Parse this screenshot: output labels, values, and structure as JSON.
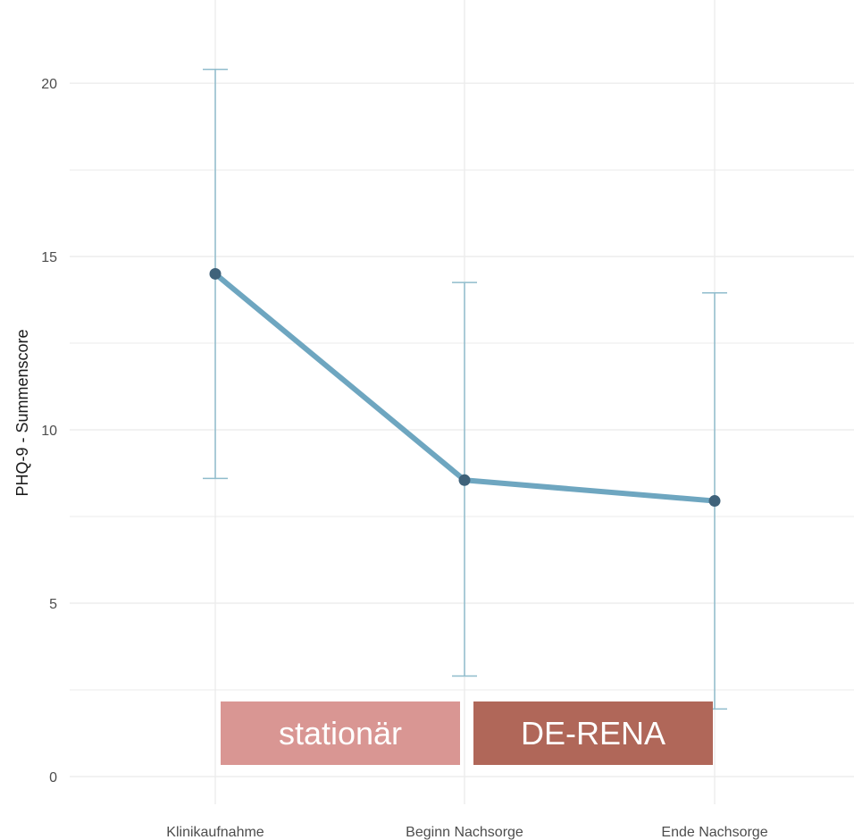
{
  "chart_data": {
    "type": "line",
    "categories": [
      "Klinikaufnahme",
      "Beginn Nachsorge",
      "Ende Nachsorge"
    ],
    "values": [
      14.5,
      8.55,
      7.95
    ],
    "error_low": [
      8.6,
      2.9,
      1.95
    ],
    "error_high": [
      20.4,
      14.25,
      13.95
    ],
    "ylabel": "PHQ-9 - Summenscore",
    "xlabel": "",
    "ylim": [
      -0.8,
      22.4
    ],
    "yticks": [
      0,
      5,
      10,
      15,
      20
    ],
    "grid": true,
    "colors": {
      "line": "#6ea6c0",
      "point": "#3f627a",
      "errorbar": "#8fbccc",
      "grid": "#ebebeb"
    }
  },
  "phases": [
    {
      "label": "stationär",
      "color": "#d99693"
    },
    {
      "label": "DE-RENA",
      "color": "#b06759"
    }
  ]
}
